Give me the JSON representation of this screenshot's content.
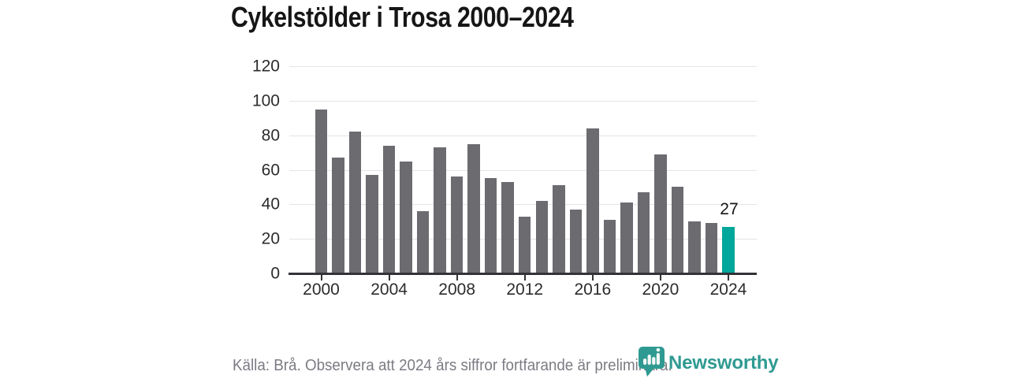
{
  "title": "Cykelstölder i Trosa 2000–2024",
  "chart_data": {
    "type": "bar",
    "title": "Cykelstölder i Trosa 2000–2024",
    "categories": [
      2000,
      2001,
      2002,
      2003,
      2004,
      2005,
      2006,
      2007,
      2008,
      2009,
      2010,
      2011,
      2012,
      2013,
      2014,
      2015,
      2016,
      2017,
      2018,
      2019,
      2020,
      2021,
      2022,
      2023,
      2024
    ],
    "values": [
      95,
      67,
      82,
      57,
      74,
      65,
      36,
      73,
      56,
      75,
      55,
      53,
      33,
      42,
      51,
      37,
      84,
      31,
      41,
      47,
      69,
      50,
      30,
      29,
      27
    ],
    "xlabel": "",
    "ylabel": "",
    "ylim": [
      0,
      120
    ],
    "yticks": [
      0,
      20,
      40,
      60,
      80,
      100,
      120
    ],
    "xticks": [
      2000,
      2004,
      2008,
      2012,
      2016,
      2020,
      2024
    ],
    "grid": true,
    "legend_position": "none",
    "bar_color": "#6b6b70",
    "highlight": {
      "year": 2024,
      "value": 27,
      "label": "27",
      "color": "#00a79a"
    }
  },
  "footer": {
    "source_note": "Källa: Brå. Observera att 2024 års siffror fortfarande är preliminära."
  },
  "branding": {
    "name": "Newsworthy",
    "icon": "newsworthy-speech-bubble-bar-chart-icon",
    "color": "#2f9a92"
  }
}
